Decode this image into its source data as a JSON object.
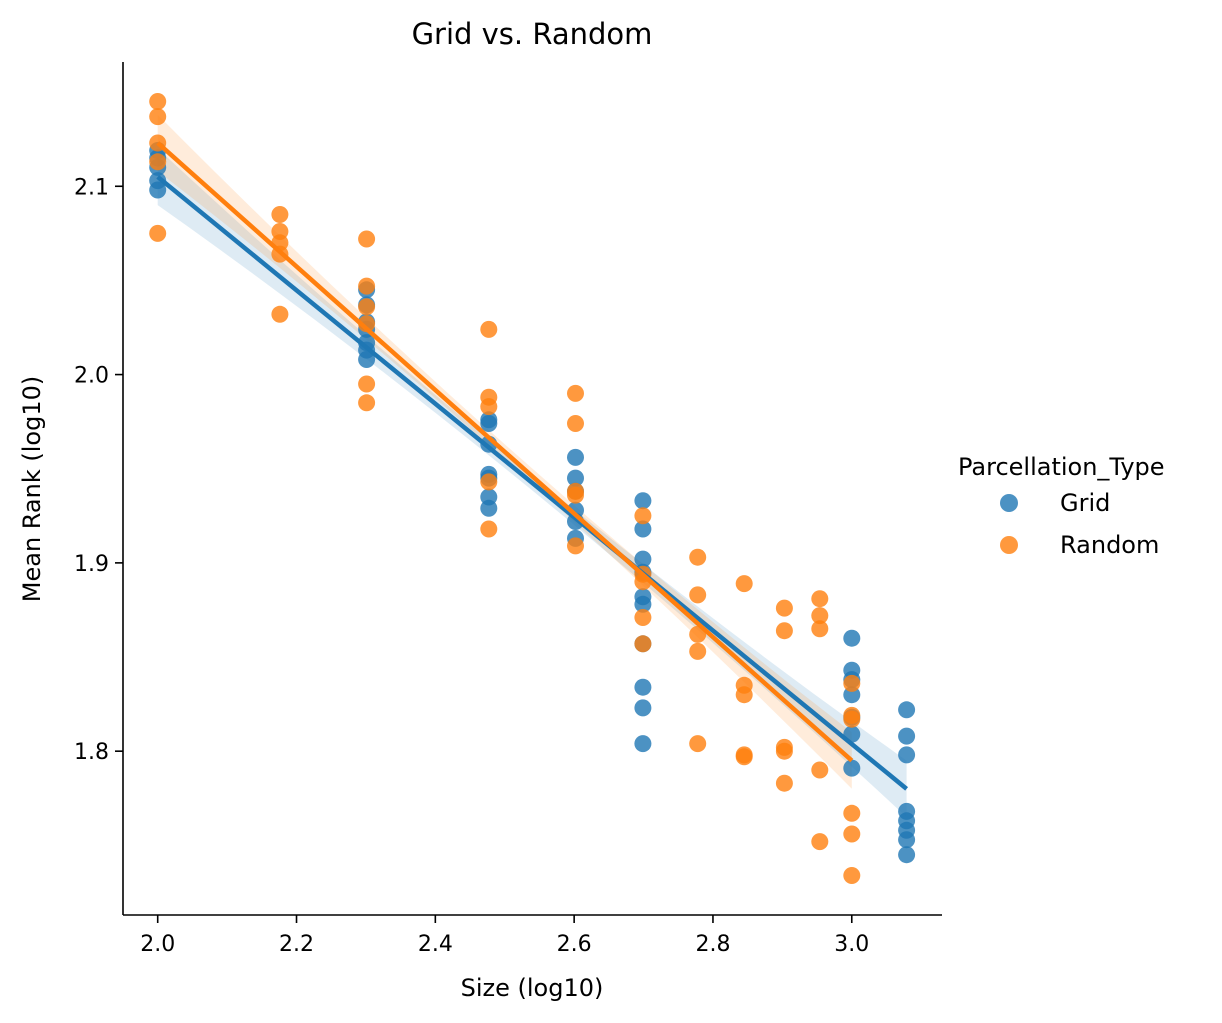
{
  "chart_data": {
    "type": "scatter",
    "title": "Grid vs. Random",
    "xlabel": "Size (log10)",
    "ylabel": "Mean Rank (log10)",
    "xlim": [
      1.95,
      3.13
    ],
    "ylim": [
      1.713,
      2.166
    ],
    "xticks": [
      2.0,
      2.2,
      2.4,
      2.6,
      2.8,
      3.0
    ],
    "xtick_labels": [
      "2.0",
      "2.2",
      "2.4",
      "2.6",
      "2.8",
      "3.0"
    ],
    "yticks": [
      1.8,
      1.9,
      2.0,
      2.1
    ],
    "ytick_labels": [
      "1.8",
      "1.9",
      "2.0",
      "2.1"
    ],
    "grid": false,
    "legend": {
      "title": "Parcellation_Type",
      "placement": "right",
      "entries": [
        {
          "name": "Grid",
          "color": "#1f77b4"
        },
        {
          "name": "Random",
          "color": "#ff7f0e"
        }
      ]
    },
    "series": [
      {
        "name": "Grid",
        "color": "#1f77b4",
        "points": [
          [
            2.0,
            2.119
          ],
          [
            2.0,
            2.115
          ],
          [
            2.0,
            2.11
          ],
          [
            2.0,
            2.103
          ],
          [
            2.0,
            2.098
          ],
          [
            2.301,
            2.045
          ],
          [
            2.301,
            2.037
          ],
          [
            2.301,
            2.028
          ],
          [
            2.301,
            2.024
          ],
          [
            2.301,
            2.017
          ],
          [
            2.301,
            2.013
          ],
          [
            2.301,
            2.008
          ],
          [
            2.477,
            1.976
          ],
          [
            2.477,
            1.974
          ],
          [
            2.477,
            1.963
          ],
          [
            2.477,
            1.947
          ],
          [
            2.477,
            1.945
          ],
          [
            2.477,
            1.935
          ],
          [
            2.477,
            1.929
          ],
          [
            2.602,
            1.956
          ],
          [
            2.602,
            1.945
          ],
          [
            2.602,
            1.938
          ],
          [
            2.602,
            1.928
          ],
          [
            2.602,
            1.922
          ],
          [
            2.602,
            1.913
          ],
          [
            2.699,
            1.933
          ],
          [
            2.699,
            1.918
          ],
          [
            2.699,
            1.902
          ],
          [
            2.699,
            1.895
          ],
          [
            2.699,
            1.882
          ],
          [
            2.699,
            1.878
          ],
          [
            2.699,
            1.857
          ],
          [
            2.699,
            1.834
          ],
          [
            2.699,
            1.823
          ],
          [
            2.699,
            1.804
          ],
          [
            3.0,
            1.86
          ],
          [
            3.0,
            1.843
          ],
          [
            3.0,
            1.838
          ],
          [
            3.0,
            1.83
          ],
          [
            3.0,
            1.818
          ],
          [
            3.0,
            1.809
          ],
          [
            3.0,
            1.791
          ],
          [
            3.079,
            1.822
          ],
          [
            3.079,
            1.808
          ],
          [
            3.079,
            1.798
          ],
          [
            3.079,
            1.768
          ],
          [
            3.079,
            1.763
          ],
          [
            3.079,
            1.758
          ],
          [
            3.079,
            1.753
          ],
          [
            3.079,
            1.745
          ]
        ],
        "fit": {
          "x": [
            2.0,
            3.079
          ],
          "y": [
            2.105,
            1.78
          ]
        }
      },
      {
        "name": "Random",
        "color": "#ff7f0e",
        "points": [
          [
            2.0,
            2.145
          ],
          [
            2.0,
            2.137
          ],
          [
            2.0,
            2.123
          ],
          [
            2.0,
            2.113
          ],
          [
            2.0,
            2.075
          ],
          [
            2.176,
            2.085
          ],
          [
            2.176,
            2.076
          ],
          [
            2.176,
            2.07
          ],
          [
            2.176,
            2.064
          ],
          [
            2.176,
            2.032
          ],
          [
            2.301,
            2.072
          ],
          [
            2.301,
            2.047
          ],
          [
            2.301,
            2.036
          ],
          [
            2.301,
            2.027
          ],
          [
            2.301,
            1.995
          ],
          [
            2.301,
            1.985
          ],
          [
            2.477,
            2.024
          ],
          [
            2.477,
            1.988
          ],
          [
            2.477,
            1.983
          ],
          [
            2.477,
            1.943
          ],
          [
            2.477,
            1.918
          ],
          [
            2.602,
            1.99
          ],
          [
            2.602,
            1.974
          ],
          [
            2.602,
            1.938
          ],
          [
            2.602,
            1.936
          ],
          [
            2.602,
            1.909
          ],
          [
            2.699,
            1.925
          ],
          [
            2.699,
            1.894
          ],
          [
            2.699,
            1.89
          ],
          [
            2.699,
            1.871
          ],
          [
            2.699,
            1.857
          ],
          [
            2.778,
            1.903
          ],
          [
            2.778,
            1.883
          ],
          [
            2.778,
            1.862
          ],
          [
            2.778,
            1.853
          ],
          [
            2.778,
            1.804
          ],
          [
            2.845,
            1.889
          ],
          [
            2.845,
            1.835
          ],
          [
            2.845,
            1.83
          ],
          [
            2.845,
            1.798
          ],
          [
            2.845,
            1.797
          ],
          [
            2.903,
            1.876
          ],
          [
            2.903,
            1.864
          ],
          [
            2.903,
            1.802
          ],
          [
            2.903,
            1.8
          ],
          [
            2.903,
            1.783
          ],
          [
            2.954,
            1.881
          ],
          [
            2.954,
            1.872
          ],
          [
            2.954,
            1.865
          ],
          [
            2.954,
            1.79
          ],
          [
            2.954,
            1.752
          ],
          [
            3.0,
            1.836
          ],
          [
            3.0,
            1.819
          ],
          [
            3.0,
            1.817
          ],
          [
            3.0,
            1.767
          ],
          [
            3.0,
            1.756
          ],
          [
            3.0,
            1.734
          ]
        ],
        "fit": {
          "x": [
            2.0,
            3.0
          ],
          "y": [
            2.123,
            1.795
          ]
        }
      }
    ]
  }
}
